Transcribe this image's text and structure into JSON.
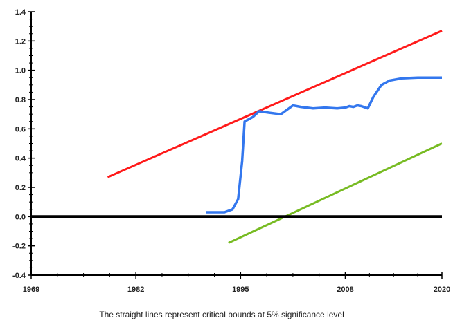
{
  "chart_data": {
    "type": "line",
    "title": "",
    "xlabel": "",
    "ylabel": "",
    "xlim": [
      1969,
      2020
    ],
    "ylim": [
      -0.4,
      1.4
    ],
    "x_ticks": [
      "1969",
      "1982",
      "1995",
      "2008",
      "2020"
    ],
    "y_ticks": [
      "1.4",
      "1.2",
      "1.0",
      "0.8",
      "0.6",
      "0.4",
      "0.2",
      "0.0",
      "-0.2",
      "-0.4"
    ],
    "caption": "The straight lines represent critical bounds at 5% significance level",
    "grid": false,
    "legend": "none",
    "series": [
      {
        "color": "#ff1a1a",
        "points": [
          [
            1978.5,
            0.27
          ],
          [
            2020,
            1.27
          ]
        ]
      },
      {
        "color": "#3377ee",
        "points": [
          [
            1990.7,
            0.03
          ],
          [
            1992,
            0.03
          ],
          [
            1993,
            0.03
          ],
          [
            1994,
            0.05
          ],
          [
            1994.7,
            0.12
          ],
          [
            1995.2,
            0.38
          ],
          [
            1995.5,
            0.65
          ],
          [
            1996.5,
            0.68
          ],
          [
            1997.3,
            0.72
          ],
          [
            1998.5,
            0.71
          ],
          [
            2000,
            0.7
          ],
          [
            2001.5,
            0.76
          ],
          [
            2002.5,
            0.75
          ],
          [
            2004,
            0.74
          ],
          [
            2005.5,
            0.745
          ],
          [
            2007,
            0.74
          ],
          [
            2008,
            0.745
          ],
          [
            2008.5,
            0.755
          ],
          [
            2009,
            0.75
          ],
          [
            2009.5,
            0.76
          ],
          [
            2010,
            0.755
          ],
          [
            2010.8,
            0.74
          ],
          [
            2011.5,
            0.82
          ],
          [
            2012.5,
            0.9
          ],
          [
            2013.5,
            0.93
          ],
          [
            2015,
            0.945
          ],
          [
            2017,
            0.95
          ],
          [
            2020,
            0.95
          ]
        ]
      },
      {
        "color": "#77bb22",
        "points": [
          [
            1993.5,
            -0.18
          ],
          [
            2020,
            0.5
          ]
        ]
      },
      {
        "color": "#000000",
        "points": [
          [
            1969,
            0.0
          ],
          [
            2020,
            0.0
          ]
        ]
      }
    ]
  }
}
